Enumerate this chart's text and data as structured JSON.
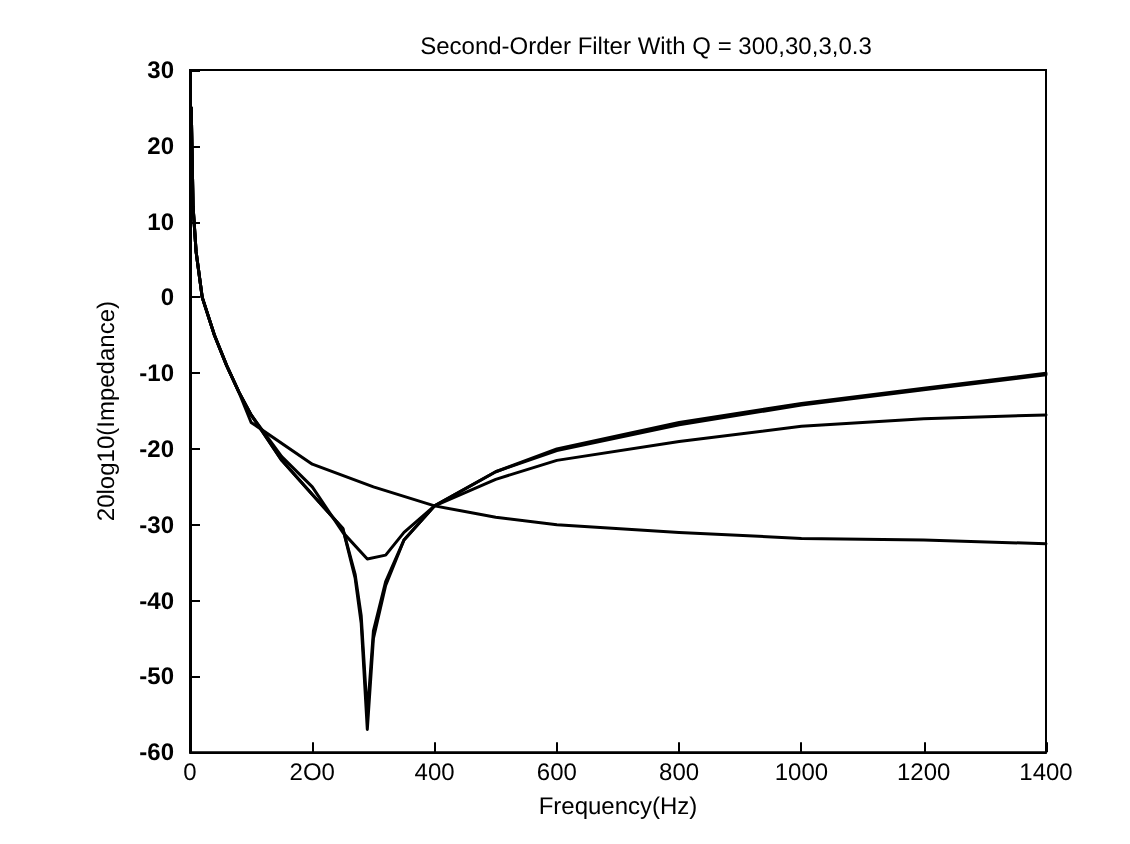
{
  "chart_data": {
    "type": "line",
    "title": "Second-Order Filter With Q = 300,30,3,0.3",
    "xlabel": "Frequency(Hz)",
    "ylabel": "20log10(Impedance)",
    "xlim": [
      0,
      1400
    ],
    "ylim": [
      -60,
      30
    ],
    "xticks": [
      0,
      {
        "value": 200,
        "label": "2O0"
      },
      400,
      600,
      800,
      1000,
      1200,
      1400
    ],
    "yticks": [
      -60,
      -50,
      -40,
      -30,
      -20,
      -10,
      0,
      10,
      20,
      30
    ],
    "grid": false,
    "marker": "none",
    "line_style": "solid",
    "series": [
      {
        "color": "#000000",
        "x": [
          2,
          5,
          10,
          20,
          40,
          60,
          80,
          100,
          150,
          200,
          250,
          270,
          280,
          290,
          300,
          320,
          350,
          400,
          500,
          600,
          800,
          1000,
          1200,
          1400
        ],
        "values": [
          25,
          12,
          6,
          0,
          -5,
          -9,
          -12.5,
          -15.5,
          -21.5,
          -26,
          -30.5,
          -37,
          -43,
          -57,
          -45,
          -38,
          -32,
          -27.5,
          -23,
          -20,
          -16.5,
          -14,
          -12,
          -10
        ]
      },
      {
        "color": "#000000",
        "x": [
          2,
          5,
          10,
          20,
          40,
          60,
          80,
          100,
          150,
          200,
          250,
          270,
          280,
          290,
          300,
          320,
          350,
          400,
          500,
          600,
          800,
          1000,
          1200,
          1400
        ],
        "values": [
          25,
          12,
          6,
          0,
          -5,
          -9,
          -12.5,
          -15.5,
          -21.5,
          -26,
          -30.5,
          -36.5,
          -42,
          -55,
          -44,
          -37.5,
          -32,
          -27.5,
          -23,
          -20.2,
          -16.8,
          -14.2,
          -12.2,
          -10.2
        ]
      },
      {
        "color": "#000000",
        "x": [
          2,
          5,
          10,
          20,
          40,
          60,
          80,
          100,
          150,
          200,
          250,
          290,
          320,
          350,
          400,
          500,
          600,
          800,
          1000,
          1200,
          1400
        ],
        "values": [
          25,
          12,
          6,
          0,
          -5,
          -9,
          -12.5,
          -15.5,
          -21,
          -25,
          -31,
          -34.5,
          -34,
          -31,
          -27.5,
          -24,
          -21.5,
          -19,
          -17,
          -16,
          -15.5
        ]
      },
      {
        "color": "#000000",
        "x": [
          2,
          5,
          10,
          20,
          40,
          60,
          80,
          100,
          200,
          300,
          400,
          500,
          600,
          800,
          1000,
          1200,
          1400
        ],
        "values": [
          25,
          12,
          6,
          0,
          -5,
          -9,
          -12.5,
          -16.5,
          -22,
          -25,
          -27.5,
          -29,
          -30,
          -31,
          -31.8,
          -32,
          -32.5
        ]
      }
    ]
  }
}
